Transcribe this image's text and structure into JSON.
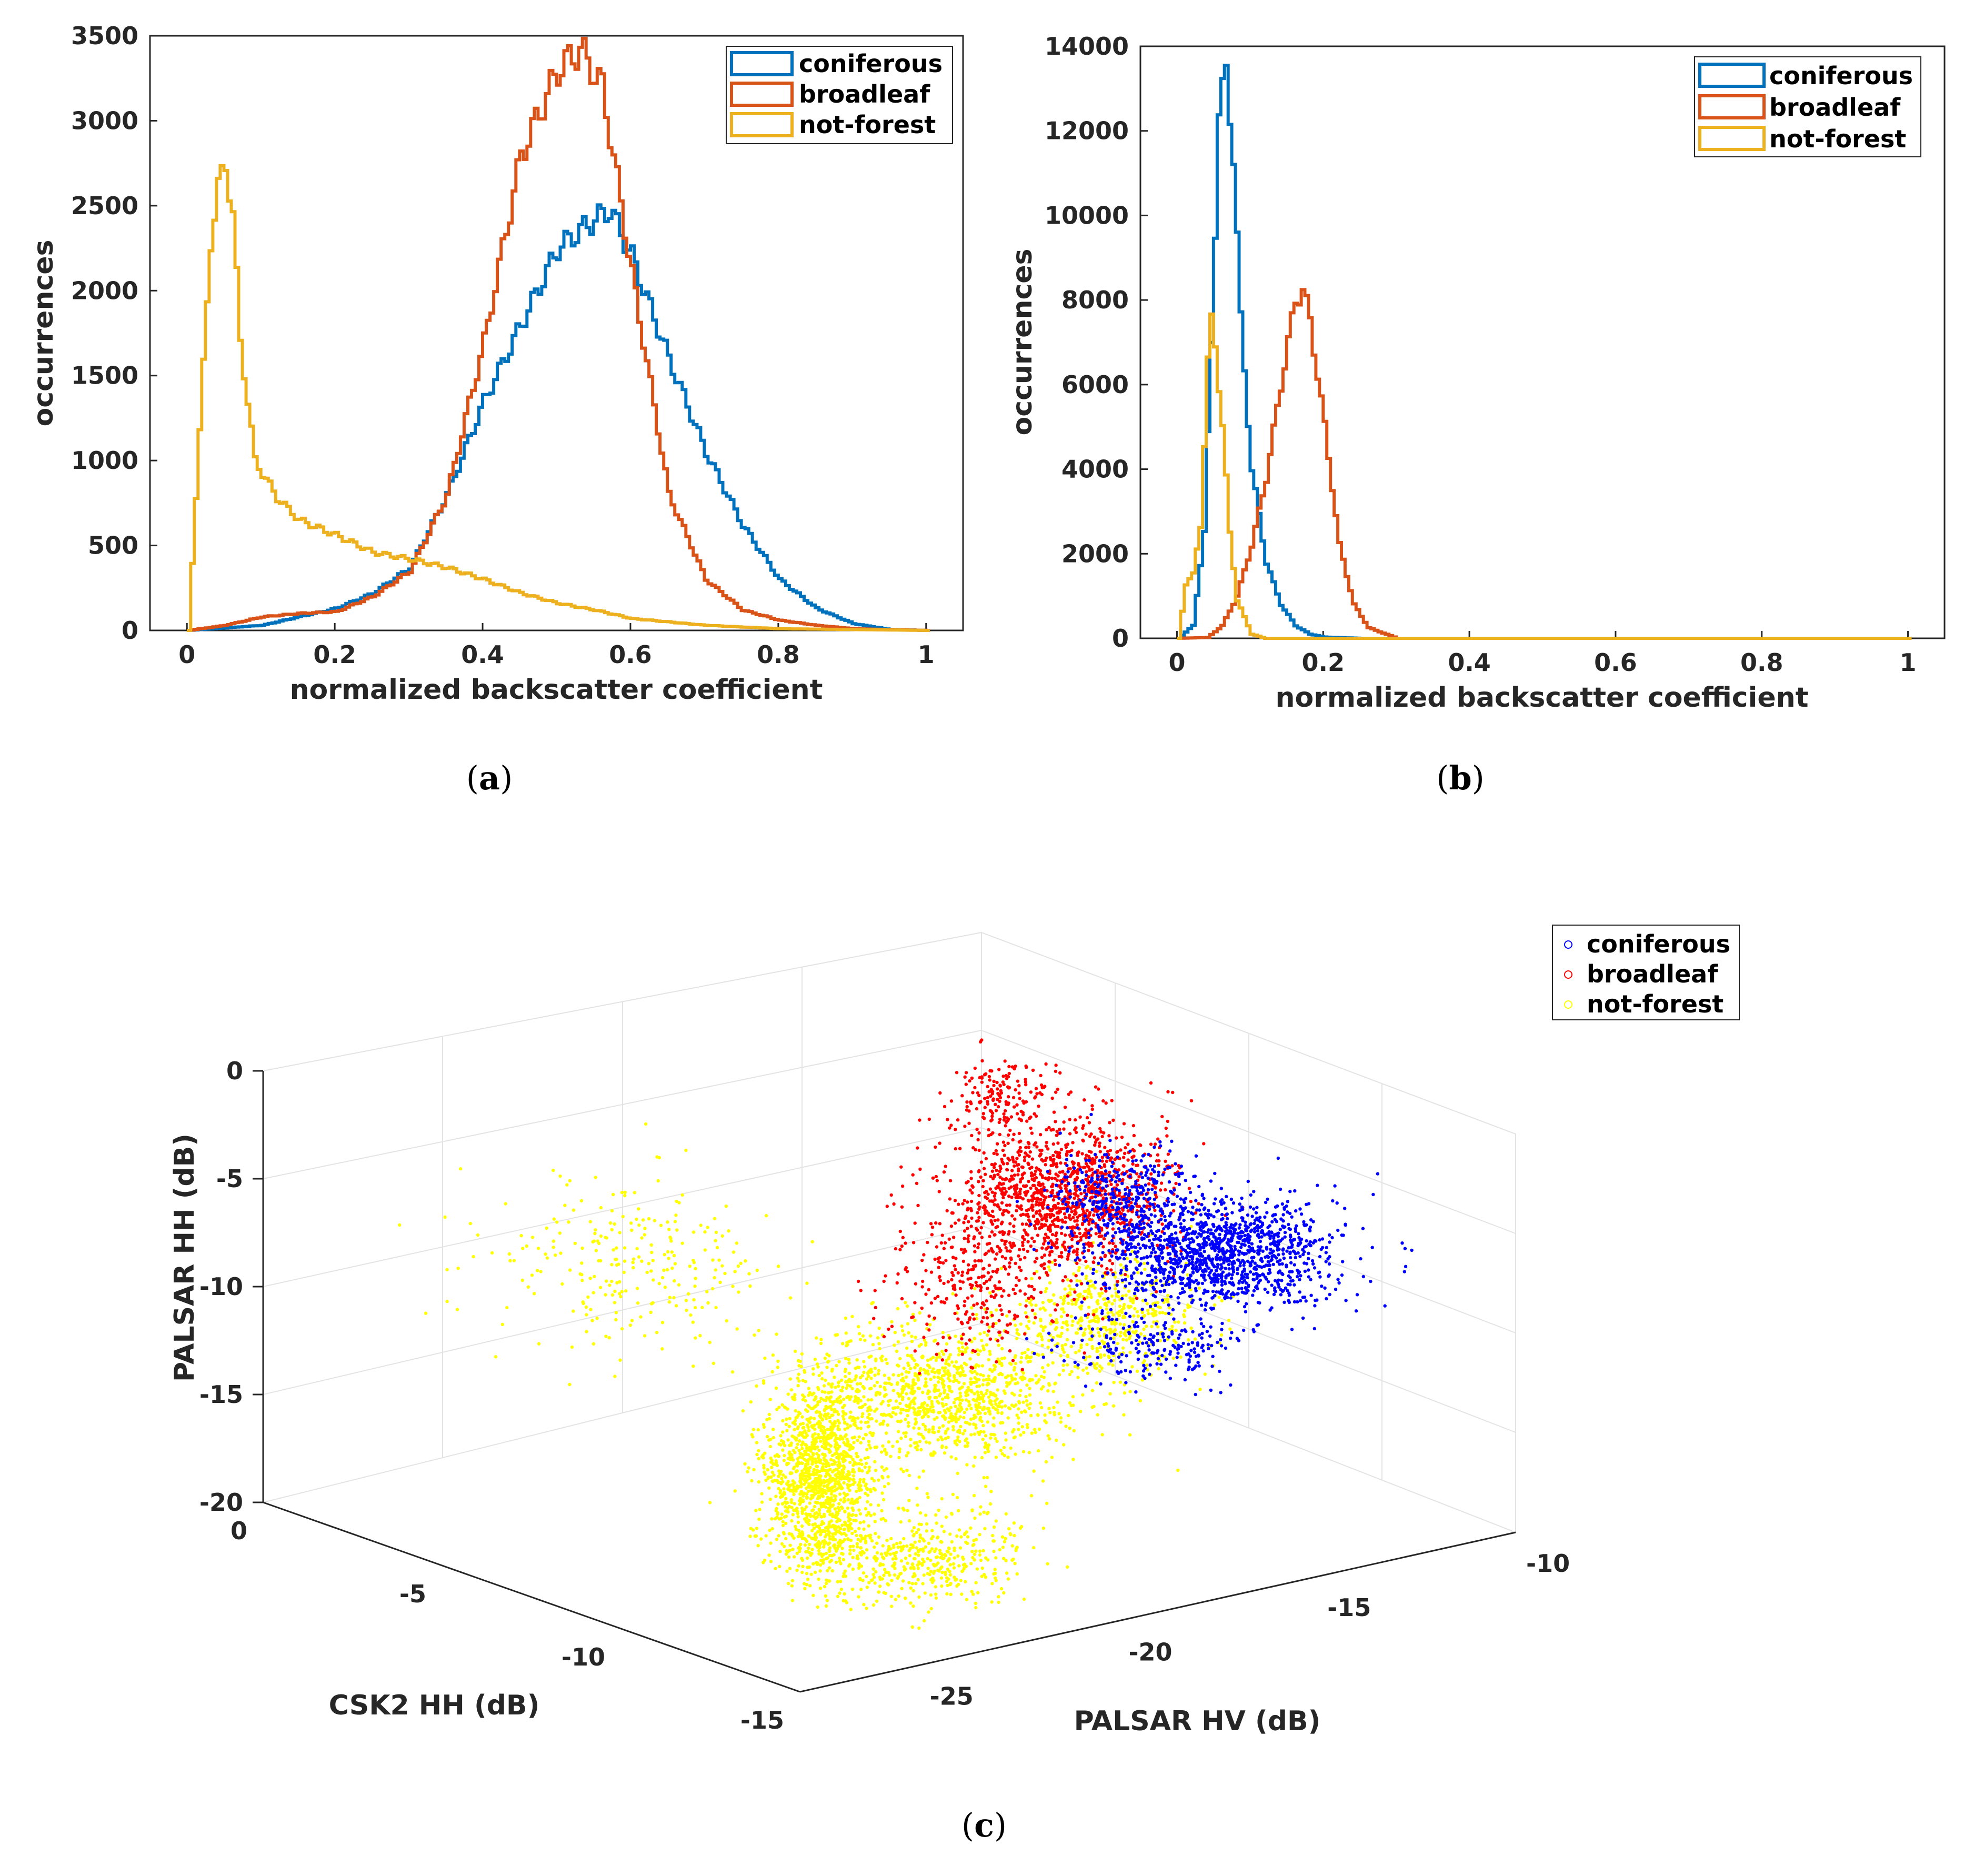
{
  "chart_data": [
    {
      "id": "a",
      "type": "histogram-line",
      "caption": "a",
      "xlabel": "normalized backscatter coefficient",
      "ylabel": "occurrences",
      "xlim": [
        -0.05,
        1.05
      ],
      "ylim": [
        0,
        3500
      ],
      "xticks": [
        "0",
        "0.2",
        "0.4",
        "0.6",
        "0.8",
        "1"
      ],
      "yticks": [
        "0",
        "500",
        "1000",
        "1500",
        "2000",
        "2500",
        "3000",
        "3500"
      ],
      "legend_position": "top-right",
      "series": [
        {
          "name": "coniferous",
          "color": "#0072BD",
          "x": [
            0,
            0.1,
            0.2,
            0.25,
            0.3,
            0.35,
            0.4,
            0.45,
            0.5,
            0.55,
            0.57,
            0.6,
            0.65,
            0.7,
            0.75,
            0.8,
            0.85,
            0.9,
            0.95,
            1.0
          ],
          "y": [
            0,
            30,
            130,
            220,
            370,
            800,
            1350,
            1800,
            2250,
            2420,
            2480,
            2200,
            1600,
            1050,
            620,
            300,
            130,
            40,
            5,
            0
          ]
        },
        {
          "name": "broadleaf",
          "color": "#D95319",
          "x": [
            0,
            0.05,
            0.1,
            0.15,
            0.2,
            0.25,
            0.3,
            0.35,
            0.4,
            0.45,
            0.5,
            0.53,
            0.56,
            0.6,
            0.65,
            0.7,
            0.75,
            0.8,
            0.85,
            0.9,
            1.0
          ],
          "y": [
            0,
            30,
            80,
            100,
            110,
            200,
            350,
            800,
            1700,
            2800,
            3300,
            3420,
            3200,
            2100,
            800,
            300,
            120,
            60,
            30,
            10,
            0
          ]
        },
        {
          "name": "not-forest",
          "color": "#EDB120",
          "x": [
            0,
            0.01,
            0.03,
            0.04,
            0.05,
            0.06,
            0.07,
            0.09,
            0.12,
            0.15,
            0.2,
            0.25,
            0.3,
            0.35,
            0.4,
            0.45,
            0.5,
            0.55,
            0.6,
            0.7,
            0.8,
            1.0
          ],
          "y": [
            0,
            800,
            2300,
            2600,
            2750,
            2450,
            1700,
            1000,
            780,
            650,
            560,
            460,
            420,
            370,
            300,
            220,
            160,
            120,
            70,
            30,
            10,
            0
          ]
        }
      ]
    },
    {
      "id": "b",
      "type": "histogram-line",
      "caption": "b",
      "xlabel": "normalized backscatter coefficient",
      "ylabel": "occurrences",
      "xlim": [
        -0.05,
        1.05
      ],
      "ylim": [
        0,
        14000
      ],
      "xticks": [
        "0",
        "0.2",
        "0.4",
        "0.6",
        "0.8",
        "1"
      ],
      "yticks": [
        "0",
        "2000",
        "4000",
        "6000",
        "8000",
        "10000",
        "12000",
        "14000"
      ],
      "legend_position": "top-right",
      "series": [
        {
          "name": "coniferous",
          "color": "#0072BD",
          "x": [
            0,
            0.02,
            0.035,
            0.045,
            0.055,
            0.065,
            0.075,
            0.085,
            0.1,
            0.12,
            0.14,
            0.16,
            0.18,
            0.2,
            0.25,
            1.0
          ],
          "y": [
            0,
            300,
            2500,
            7000,
            12500,
            13300,
            11500,
            7500,
            4000,
            1800,
            800,
            300,
            100,
            30,
            0,
            0
          ]
        },
        {
          "name": "broadleaf",
          "color": "#D95319",
          "x": [
            0,
            0.04,
            0.06,
            0.08,
            0.1,
            0.12,
            0.14,
            0.16,
            0.17,
            0.18,
            0.2,
            0.22,
            0.24,
            0.26,
            0.3,
            1.0
          ],
          "y": [
            0,
            20,
            300,
            1000,
            2200,
            3800,
            6000,
            8000,
            8250,
            7500,
            5000,
            2200,
            800,
            250,
            0,
            0
          ]
        },
        {
          "name": "not-forest",
          "color": "#EDB120",
          "x": [
            0,
            0.01,
            0.02,
            0.03,
            0.04,
            0.045,
            0.05,
            0.06,
            0.07,
            0.08,
            0.1,
            0.12,
            1.0
          ],
          "y": [
            0,
            1300,
            1500,
            2700,
            6500,
            7500,
            7000,
            5000,
            2500,
            900,
            100,
            0,
            0
          ]
        }
      ]
    },
    {
      "id": "c",
      "type": "scatter",
      "caption": "c",
      "xlabel": "CSK2 HH (dB)",
      "ylabel": "PALSAR HH (dB)",
      "zlabel": "PALSAR HV (dB)",
      "xticks": [
        "0",
        "-5",
        "-10",
        "-15"
      ],
      "yticks": [
        "-25",
        "-20",
        "-15",
        "-10"
      ],
      "zticks": [
        "0",
        "-5",
        "-10",
        "-15",
        "-20"
      ],
      "xlim": [
        -15,
        0
      ],
      "ylim": [
        -28,
        -10
      ],
      "zlim": [
        -20,
        0
      ],
      "grid": true,
      "legend_position": "top-right",
      "series": [
        {
          "name": "coniferous",
          "color": "#0000FF",
          "centroid": {
            "csk2_hh": -5,
            "palsar_hv": -14,
            "palsar_hh": -9
          }
        },
        {
          "name": "broadleaf",
          "color": "#FF0000",
          "centroid": {
            "csk2_hh": -5,
            "palsar_hv": -19,
            "palsar_hh": -7
          }
        },
        {
          "name": "not-forest",
          "color": "#FFFF00",
          "centroid": {
            "csk2_hh": -9,
            "palsar_hv": -24,
            "palsar_hh": -16
          }
        }
      ]
    }
  ]
}
